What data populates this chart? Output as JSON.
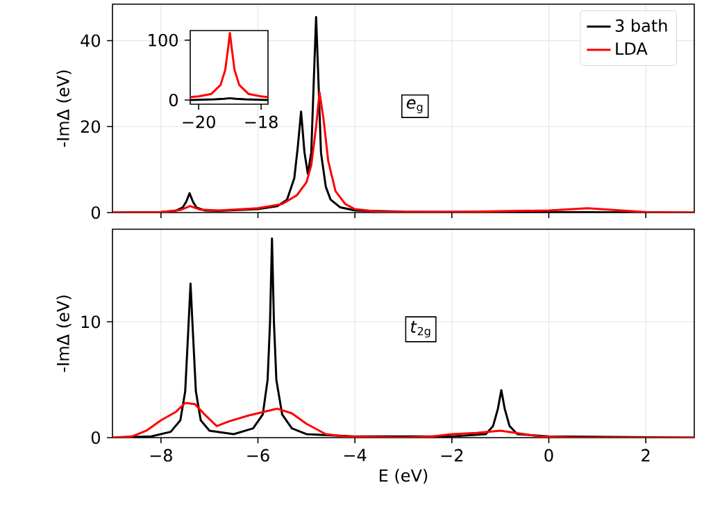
{
  "chart_data": [
    {
      "type": "line",
      "ylabel": "-ImΔ   (eV)",
      "xlim": [
        -9,
        3
      ],
      "ylim": [
        0,
        48.5
      ],
      "xticks": [
        -8,
        -6,
        -4,
        -2,
        0,
        2
      ],
      "yticks": [
        0,
        20,
        40
      ],
      "tick_labels": "y",
      "grid": true,
      "legend": "top right",
      "annotations": [
        "*e*$_{g}$"
      ],
      "series": [
        {
          "name": "3 bath",
          "color": "#000000",
          "x": [
            -9,
            -8,
            -7.7,
            -7.55,
            -7.48,
            -7.41,
            -7.34,
            -7.27,
            -7.1,
            -6.8,
            -6,
            -5.6,
            -5.4,
            -5.25,
            -5.18,
            -5.11,
            -5.04,
            -4.97,
            -4.9,
            -4.85,
            -4.8,
            -4.75,
            -4.7,
            -4.6,
            -4.5,
            -4.3,
            -4,
            -3,
            0,
            3
          ],
          "values": [
            0,
            0.1,
            0.4,
            1.2,
            2.5,
            4.5,
            2.5,
            1.2,
            0.5,
            0.4,
            0.8,
            1.5,
            3,
            8,
            15,
            23.5,
            14,
            9,
            14,
            30,
            45.5,
            30,
            14,
            6,
            3,
            1.2,
            0.5,
            0.2,
            0.1,
            0
          ]
        },
        {
          "name": "LDA",
          "color": "#ff0000",
          "x": [
            -9,
            -8,
            -7.6,
            -7.4,
            -7.2,
            -6.8,
            -6,
            -5.5,
            -5.2,
            -5.0,
            -4.9,
            -4.8,
            -4.73,
            -4.65,
            -4.55,
            -4.4,
            -4.2,
            -4,
            -3.5,
            -2,
            -1,
            0,
            0.8,
            1.5,
            2,
            3
          ],
          "values": [
            0,
            0.1,
            0.6,
            1.5,
            0.7,
            0.5,
            1,
            2,
            4,
            7,
            11,
            20,
            28,
            22,
            12,
            5,
            2,
            0.8,
            0.2,
            0.1,
            0.3,
            0.5,
            1,
            0.5,
            0.1,
            0
          ]
        }
      ]
    },
    {
      "type": "line",
      "xlabel": "E   (eV)",
      "ylabel": "-ImΔ   (eV)",
      "xlim": [
        -9,
        3
      ],
      "ylim": [
        0,
        18
      ],
      "xticks": [
        {
          "value": -8,
          "label": "−8"
        },
        {
          "value": -6,
          "label": "−6"
        },
        {
          "value": -4,
          "label": "−4"
        },
        {
          "value": -2,
          "label": "−2"
        },
        0,
        2
      ],
      "yticks": [
        0,
        10
      ],
      "grid": true,
      "annotations": [
        "*t*$_{2g}$"
      ],
      "series": [
        {
          "color": "#000000",
          "x": [
            -9,
            -8.2,
            -7.8,
            -7.6,
            -7.5,
            -7.44,
            -7.39,
            -7.34,
            -7.28,
            -7.18,
            -7,
            -6.5,
            -6.1,
            -5.9,
            -5.8,
            -5.75,
            -5.71,
            -5.67,
            -5.62,
            -5.5,
            -5.3,
            -5,
            -4,
            -2,
            -1.3,
            -1.15,
            -1.05,
            -0.98,
            -0.91,
            -0.81,
            -0.65,
            0,
            3
          ],
          "values": [
            0,
            0.1,
            0.5,
            1.5,
            4,
            9,
            13.3,
            9,
            4,
            1.5,
            0.6,
            0.3,
            0.8,
            2,
            5,
            10,
            17.2,
            10,
            5,
            2,
            0.8,
            0.3,
            0.1,
            0.1,
            0.3,
            1,
            2.5,
            4.1,
            2.5,
            1,
            0.3,
            0.1,
            0
          ]
        },
        {
          "color": "#ff0000",
          "x": [
            -9,
            -8.6,
            -8.3,
            -8,
            -7.7,
            -7.5,
            -7.3,
            -7.1,
            -6.85,
            -6.6,
            -6.2,
            -5.8,
            -5.6,
            -5.3,
            -5,
            -4.6,
            -4.2,
            -3,
            -2.4,
            -2,
            -1.5,
            -1,
            -0.5,
            -0.2,
            0.5,
            3
          ],
          "values": [
            0,
            0.1,
            0.6,
            1.5,
            2.2,
            3,
            2.9,
            2,
            1,
            1.4,
            1.9,
            2.3,
            2.5,
            2.1,
            1.2,
            0.3,
            0.1,
            0,
            0.1,
            0.3,
            0.4,
            0.6,
            0.3,
            0.1,
            0,
            0
          ]
        }
      ]
    },
    {
      "type": "line",
      "xlim": [
        -20.27,
        -17.78
      ],
      "ylim": [
        -7,
        116
      ],
      "xticks": [
        {
          "value": -20,
          "label": "−20"
        },
        {
          "value": -18,
          "label": "−18"
        }
      ],
      "yticks": [
        0,
        100
      ],
      "series": [
        {
          "color": "#000000",
          "x": [
            -20.27,
            -19.5,
            -19.2,
            -19,
            -18.8,
            -18.5,
            -17.78
          ],
          "values": [
            0,
            1,
            2,
            3,
            2,
            1,
            0
          ]
        },
        {
          "color": "#ff0000",
          "x": [
            -20.27,
            -20,
            -19.6,
            -19.3,
            -19.15,
            -19.05,
            -19,
            -18.95,
            -18.85,
            -18.7,
            -18.4,
            -18,
            -17.78
          ],
          "values": [
            5,
            6,
            10,
            25,
            50,
            90,
            112,
            90,
            50,
            25,
            10,
            6,
            5
          ]
        }
      ]
    }
  ]
}
